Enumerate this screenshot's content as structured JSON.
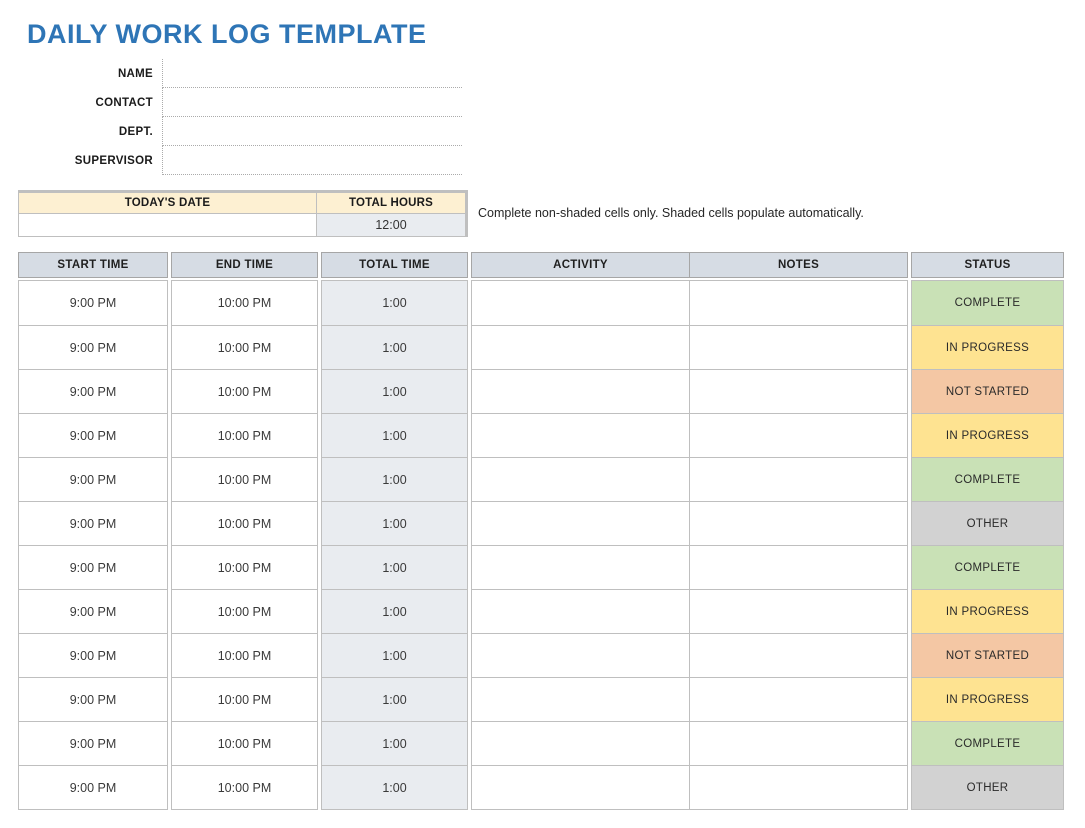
{
  "title": "DAILY WORK LOG TEMPLATE",
  "note": "Complete non-shaded cells only. Shaded cells populate automatically.",
  "colors": {
    "accent": "#2E75B6",
    "table_header_bg": "#D6DCE4",
    "shaded_cell_bg": "#E9ECF0",
    "summary_header_bg": "#FDF0D2",
    "border": "#BFBFBF",
    "status": {
      "COMPLETE": "#C9E1B6",
      "IN PROGRESS": "#FEE391",
      "NOT STARTED": "#F4C7A4",
      "OTHER": "#D2D2D2"
    }
  },
  "form": {
    "fields": [
      {
        "label": "NAME",
        "value": ""
      },
      {
        "label": "CONTACT",
        "value": ""
      },
      {
        "label": "DEPT.",
        "value": ""
      },
      {
        "label": "SUPERVISOR",
        "value": ""
      }
    ]
  },
  "summary": {
    "date_header": "TODAY'S DATE",
    "hours_header": "TOTAL HOURS",
    "date_value": "",
    "hours_value": "12:00"
  },
  "log_table": {
    "columns": [
      "START TIME",
      "END TIME",
      "TOTAL TIME",
      "ACTIVITY",
      "NOTES",
      "STATUS"
    ],
    "rows": [
      {
        "start": "9:00 PM",
        "end": "10:00 PM",
        "total": "1:00",
        "activity": "",
        "notes": "",
        "status": "COMPLETE"
      },
      {
        "start": "9:00 PM",
        "end": "10:00 PM",
        "total": "1:00",
        "activity": "",
        "notes": "",
        "status": "IN PROGRESS"
      },
      {
        "start": "9:00 PM",
        "end": "10:00 PM",
        "total": "1:00",
        "activity": "",
        "notes": "",
        "status": "NOT STARTED"
      },
      {
        "start": "9:00 PM",
        "end": "10:00 PM",
        "total": "1:00",
        "activity": "",
        "notes": "",
        "status": "IN PROGRESS"
      },
      {
        "start": "9:00 PM",
        "end": "10:00 PM",
        "total": "1:00",
        "activity": "",
        "notes": "",
        "status": "COMPLETE"
      },
      {
        "start": "9:00 PM",
        "end": "10:00 PM",
        "total": "1:00",
        "activity": "",
        "notes": "",
        "status": "OTHER"
      },
      {
        "start": "9:00 PM",
        "end": "10:00 PM",
        "total": "1:00",
        "activity": "",
        "notes": "",
        "status": "COMPLETE"
      },
      {
        "start": "9:00 PM",
        "end": "10:00 PM",
        "total": "1:00",
        "activity": "",
        "notes": "",
        "status": "IN PROGRESS"
      },
      {
        "start": "9:00 PM",
        "end": "10:00 PM",
        "total": "1:00",
        "activity": "",
        "notes": "",
        "status": "NOT STARTED"
      },
      {
        "start": "9:00 PM",
        "end": "10:00 PM",
        "total": "1:00",
        "activity": "",
        "notes": "",
        "status": "IN PROGRESS"
      },
      {
        "start": "9:00 PM",
        "end": "10:00 PM",
        "total": "1:00",
        "activity": "",
        "notes": "",
        "status": "COMPLETE"
      },
      {
        "start": "9:00 PM",
        "end": "10:00 PM",
        "total": "1:00",
        "activity": "",
        "notes": "",
        "status": "OTHER"
      }
    ]
  }
}
